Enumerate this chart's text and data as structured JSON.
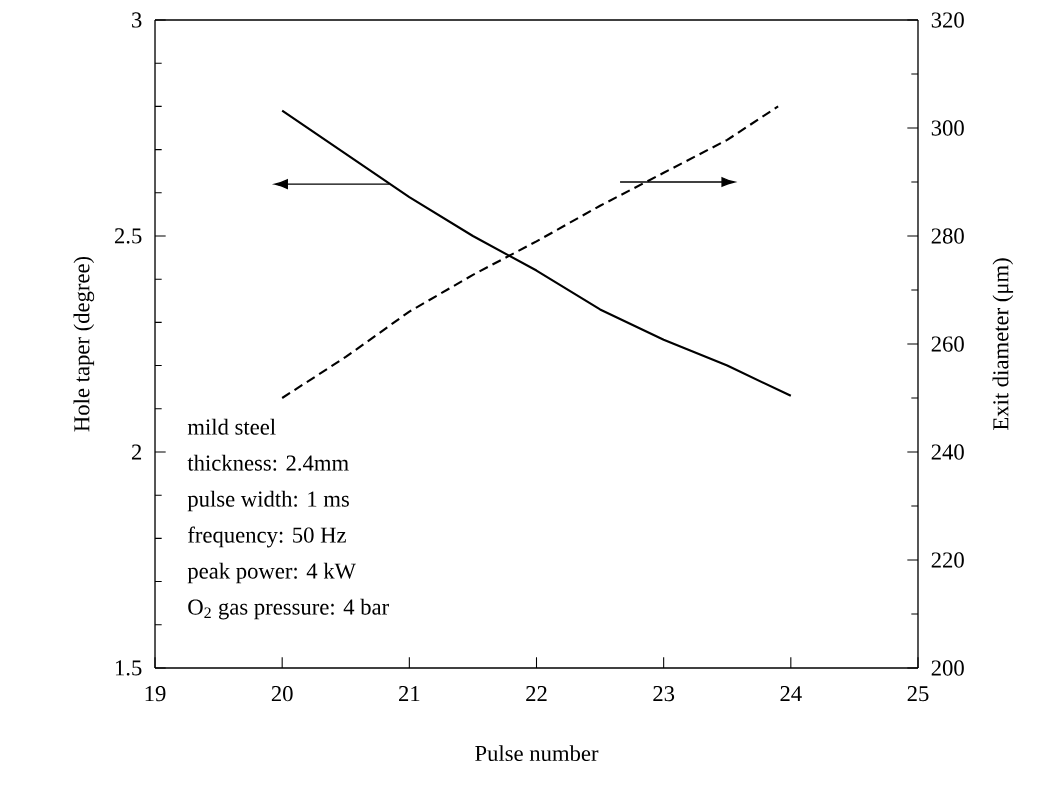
{
  "chart_data": {
    "type": "line",
    "xlabel": "Pulse number",
    "ylabel": "Hole taper (degree)",
    "y2label": "Exit diameter  (μm)",
    "xlim": [
      19,
      25
    ],
    "xticks": [
      19,
      20,
      21,
      22,
      23,
      24,
      25
    ],
    "ylim": [
      1.5,
      3
    ],
    "yticks": [
      1.5,
      2,
      2.5,
      3
    ],
    "y2lim": [
      200,
      320
    ],
    "y2ticks": [
      200,
      220,
      240,
      260,
      280,
      300,
      320
    ],
    "grid": false,
    "series": [
      {
        "color": "#000000",
        "line_style": "solid",
        "x": [
          20,
          20.5,
          21,
          21.5,
          22,
          22.5,
          23,
          23.5,
          24
        ],
        "values": [
          2.79,
          2.69,
          2.59,
          2.5,
          2.42,
          2.33,
          2.26,
          2.2,
          2.13
        ]
      },
      {
        "color": "#000000",
        "line_style": "dashed",
        "axis": "y2",
        "x": [
          20,
          20.5,
          21,
          21.5,
          22,
          22.5,
          23,
          23.5,
          23.9
        ],
        "values": [
          250,
          257.6,
          266,
          272.8,
          279,
          285.6,
          291.7,
          297.8,
          304
        ]
      }
    ],
    "annotations": [
      "mild steel",
      "thickness: 2.4mm",
      "pulse width: 1 ms",
      "frequency: 50 Hz",
      "peak power: 4 kW",
      "O$_{2}$ gas pressure: 4 bar"
    ]
  }
}
